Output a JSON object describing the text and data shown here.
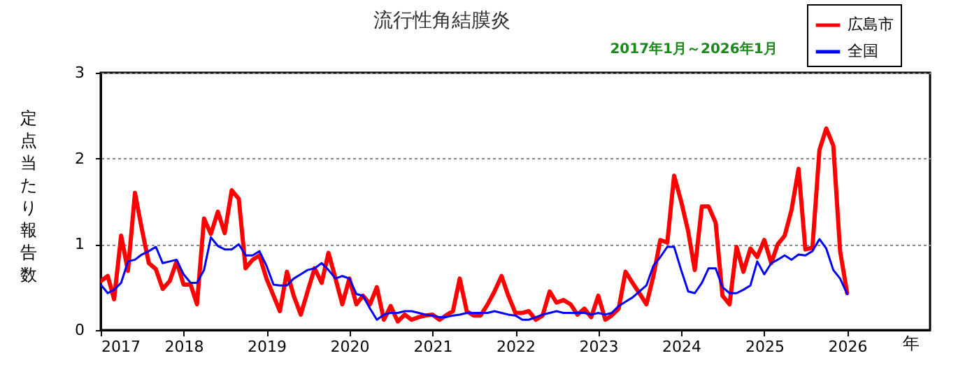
{
  "chart_data": {
    "type": "line",
    "title": "流行性角結膜炎",
    "subtitle": "2017年1月～2026年1月",
    "xlabel": "年",
    "ylabel": "定点当たり報告数",
    "x": [
      "2017-01",
      "2017-02",
      "2017-03",
      "2017-04",
      "2017-05",
      "2017-06",
      "2017-07",
      "2017-08",
      "2017-09",
      "2017-10",
      "2017-11",
      "2017-12",
      "2018-01",
      "2018-02",
      "2018-03",
      "2018-04",
      "2018-05",
      "2018-06",
      "2018-07",
      "2018-08",
      "2018-09",
      "2018-10",
      "2018-11",
      "2018-12",
      "2019-01",
      "2019-02",
      "2019-03",
      "2019-04",
      "2019-05",
      "2019-06",
      "2019-07",
      "2019-08",
      "2019-09",
      "2019-10",
      "2019-11",
      "2019-12",
      "2020-01",
      "2020-02",
      "2020-03",
      "2020-04",
      "2020-05",
      "2020-06",
      "2020-07",
      "2020-08",
      "2020-09",
      "2020-10",
      "2020-11",
      "2020-12",
      "2021-01",
      "2021-02",
      "2021-03",
      "2021-04",
      "2021-05",
      "2021-06",
      "2021-07",
      "2021-08",
      "2021-09",
      "2021-10",
      "2021-11",
      "2021-12",
      "2022-01",
      "2022-02",
      "2022-03",
      "2022-04",
      "2022-05",
      "2022-06",
      "2022-07",
      "2022-08",
      "2022-09",
      "2022-10",
      "2022-11",
      "2022-12",
      "2023-01",
      "2023-02",
      "2023-03",
      "2023-04",
      "2023-05",
      "2023-06",
      "2023-07",
      "2023-08",
      "2023-09",
      "2023-10",
      "2023-11",
      "2023-12",
      "2024-01",
      "2024-02",
      "2024-03",
      "2024-04",
      "2024-05",
      "2024-06",
      "2024-07",
      "2024-08",
      "2024-09",
      "2024-10",
      "2024-11",
      "2024-12",
      "2025-01",
      "2025-02",
      "2025-03",
      "2025-04",
      "2025-05",
      "2025-06",
      "2025-07",
      "2025-08",
      "2025-09",
      "2025-10",
      "2025-11",
      "2025-12",
      "2026-01"
    ],
    "series": [
      {
        "name": "広島市",
        "color": "#ff0000",
        "values": [
          0.57,
          0.63,
          0.36,
          1.1,
          0.69,
          1.6,
          1.18,
          0.78,
          0.71,
          0.48,
          0.57,
          0.8,
          0.53,
          0.53,
          0.3,
          1.3,
          1.12,
          1.38,
          1.13,
          1.63,
          1.53,
          0.72,
          0.82,
          0.87,
          0.6,
          0.4,
          0.22,
          0.68,
          0.4,
          0.18,
          0.45,
          0.72,
          0.55,
          0.9,
          0.6,
          0.3,
          0.6,
          0.3,
          0.4,
          0.3,
          0.5,
          0.12,
          0.28,
          0.1,
          0.18,
          0.12,
          0.15,
          0.17,
          0.18,
          0.12,
          0.17,
          0.22,
          0.6,
          0.22,
          0.17,
          0.17,
          0.3,
          0.45,
          0.63,
          0.4,
          0.2,
          0.2,
          0.22,
          0.12,
          0.17,
          0.45,
          0.32,
          0.35,
          0.3,
          0.18,
          0.25,
          0.15,
          0.4,
          0.12,
          0.17,
          0.25,
          0.68,
          0.55,
          0.43,
          0.3,
          0.63,
          1.05,
          1.02,
          1.8,
          1.5,
          1.15,
          0.7,
          1.44,
          1.44,
          1.25,
          0.4,
          0.3,
          0.97,
          0.68,
          0.95,
          0.85,
          1.05,
          0.78,
          1.0,
          1.1,
          1.4,
          1.88,
          0.94,
          0.96,
          2.1,
          2.35,
          2.15,
          0.92,
          0.43
        ]
      },
      {
        "name": "全国",
        "color": "#0000ff",
        "values": [
          0.53,
          0.43,
          0.47,
          0.55,
          0.8,
          0.82,
          0.88,
          0.92,
          0.97,
          0.78,
          0.8,
          0.82,
          0.65,
          0.55,
          0.55,
          0.7,
          1.08,
          0.98,
          0.94,
          0.94,
          1.0,
          0.87,
          0.87,
          0.92,
          0.75,
          0.53,
          0.52,
          0.52,
          0.6,
          0.65,
          0.7,
          0.72,
          0.78,
          0.7,
          0.6,
          0.63,
          0.6,
          0.42,
          0.4,
          0.25,
          0.12,
          0.18,
          0.2,
          0.2,
          0.22,
          0.22,
          0.2,
          0.18,
          0.17,
          0.15,
          0.15,
          0.17,
          0.18,
          0.2,
          0.2,
          0.2,
          0.2,
          0.22,
          0.2,
          0.18,
          0.17,
          0.12,
          0.12,
          0.15,
          0.18,
          0.2,
          0.22,
          0.2,
          0.2,
          0.2,
          0.2,
          0.18,
          0.2,
          0.18,
          0.2,
          0.28,
          0.33,
          0.38,
          0.45,
          0.52,
          0.75,
          0.85,
          0.97,
          0.97,
          0.7,
          0.45,
          0.43,
          0.55,
          0.72,
          0.72,
          0.5,
          0.43,
          0.43,
          0.47,
          0.52,
          0.8,
          0.65,
          0.78,
          0.82,
          0.87,
          0.82,
          0.88,
          0.87,
          0.92,
          1.06,
          0.95,
          0.7,
          0.6,
          0.42
        ]
      }
    ],
    "xlim": [
      "2017-01",
      "2027-01"
    ],
    "xticks": [
      {
        "value": "2017",
        "label": "2017"
      },
      {
        "value": "2018",
        "label": "2018"
      },
      {
        "value": "2019",
        "label": "2019"
      },
      {
        "value": "2020",
        "label": "2020"
      },
      {
        "value": "2021",
        "label": "2021"
      },
      {
        "value": "2022",
        "label": "2022"
      },
      {
        "value": "2023",
        "label": "2023"
      },
      {
        "value": "2024",
        "label": "2024"
      },
      {
        "value": "2025",
        "label": "2025"
      },
      {
        "value": "2026",
        "label": "2026"
      }
    ],
    "ylim": [
      0,
      3
    ],
    "yticks": [
      0,
      1,
      2,
      3
    ],
    "grid": "y",
    "legend": "top right",
    "marker": "none",
    "line_style": "solid"
  }
}
